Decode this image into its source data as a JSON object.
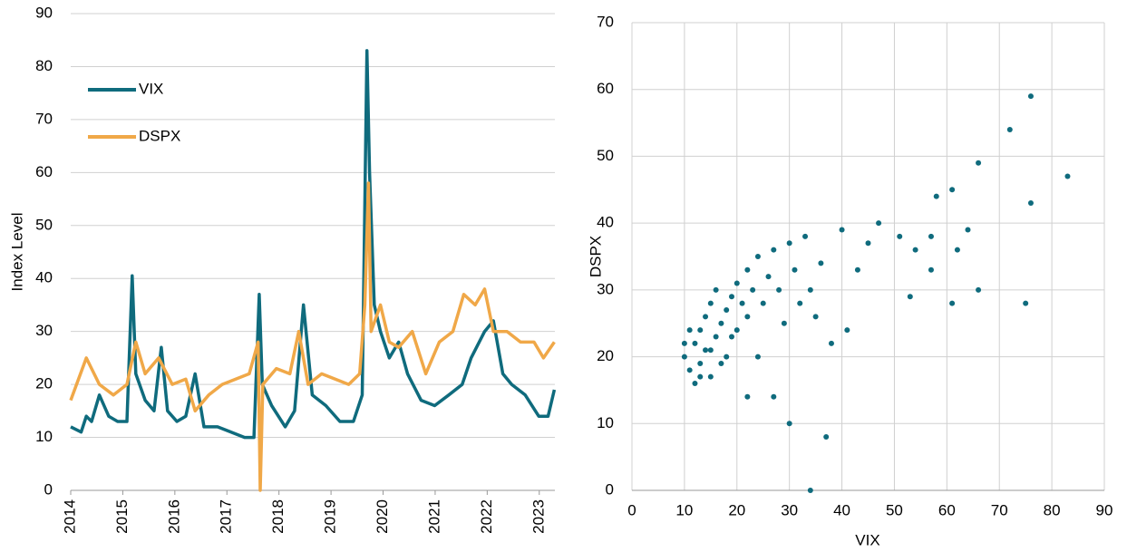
{
  "chart_data": [
    {
      "type": "line",
      "ylabel": "Index Level",
      "xlim": [
        2014,
        2023.3
      ],
      "xticks": [
        2014,
        2015,
        2016,
        2017,
        2018,
        2019,
        2020,
        2021,
        2022,
        2023
      ],
      "ylim": [
        0,
        90
      ],
      "yticks": [
        0,
        10,
        20,
        30,
        40,
        50,
        60,
        70,
        80,
        90
      ],
      "grid": true,
      "legend": "upper left",
      "series": [
        {
          "name": "VIX",
          "color": "#0f6b7d",
          "x": [
            2014.0,
            2014.2,
            2014.3,
            2014.4,
            2014.55,
            2014.73,
            2014.9,
            2015.08,
            2015.18,
            2015.25,
            2015.43,
            2015.6,
            2015.74,
            2015.86,
            2016.04,
            2016.21,
            2016.39,
            2016.56,
            2016.82,
            2017.08,
            2017.34,
            2017.52,
            2017.62,
            2017.68,
            2017.86,
            2018.12,
            2018.3,
            2018.47,
            2018.64,
            2018.9,
            2019.17,
            2019.43,
            2019.6,
            2019.69,
            2019.74,
            2019.83,
            2019.95,
            2020.12,
            2020.3,
            2020.47,
            2020.73,
            2020.99,
            2021.26,
            2021.52,
            2021.69,
            2021.95,
            2022.12,
            2022.3,
            2022.47,
            2022.73,
            2022.99,
            2023.17,
            2023.29
          ],
          "values": [
            12,
            11,
            14,
            13,
            18,
            14,
            13,
            13,
            40.5,
            22,
            17,
            15,
            27,
            15,
            13,
            14,
            22,
            12,
            12,
            11,
            10,
            10,
            37,
            20,
            16,
            12,
            15,
            35,
            18,
            16,
            13,
            13,
            18,
            83,
            60,
            35,
            30,
            25,
            28,
            22,
            17,
            16,
            18,
            20,
            25,
            30,
            32,
            22,
            20,
            18,
            14,
            14,
            19
          ]
        },
        {
          "name": "DSPX",
          "color": "#f0a848",
          "x": [
            2014.0,
            2014.3,
            2014.55,
            2014.82,
            2015.08,
            2015.25,
            2015.43,
            2015.69,
            2015.95,
            2016.21,
            2016.39,
            2016.65,
            2016.91,
            2017.17,
            2017.43,
            2017.6,
            2017.64,
            2017.69,
            2017.95,
            2018.21,
            2018.38,
            2018.56,
            2018.82,
            2019.08,
            2019.34,
            2019.55,
            2019.65,
            2019.72,
            2019.77,
            2019.95,
            2020.12,
            2020.3,
            2020.56,
            2020.82,
            2021.08,
            2021.34,
            2021.55,
            2021.77,
            2021.95,
            2022.12,
            2022.38,
            2022.64,
            2022.9,
            2023.08,
            2023.29
          ],
          "values": [
            17,
            25,
            20,
            18,
            20,
            28,
            22,
            25,
            20,
            21,
            15,
            18,
            20,
            21,
            22,
            28,
            0,
            20,
            23,
            22,
            30,
            20,
            22,
            21,
            20,
            22,
            35,
            58,
            30,
            35,
            28,
            27,
            30,
            22,
            28,
            30,
            37,
            35,
            38,
            30,
            30,
            28,
            28,
            25,
            28
          ]
        }
      ]
    },
    {
      "type": "scatter",
      "xlabel": "VIX",
      "ylabel": "DSPX",
      "color": "#0f6b7d",
      "grid": true,
      "xlim": [
        0,
        90
      ],
      "xticks": [
        0,
        10,
        20,
        30,
        40,
        50,
        60,
        70,
        80,
        90
      ],
      "ylim": [
        0,
        70
      ],
      "yticks": [
        0,
        10,
        20,
        30,
        40,
        50,
        60,
        70
      ],
      "x": [
        10,
        11,
        12,
        12,
        13,
        13,
        14,
        14,
        15,
        15,
        16,
        16,
        17,
        18,
        18,
        19,
        20,
        20,
        21,
        22,
        22,
        23,
        24,
        25,
        26,
        27,
        28,
        29,
        30,
        31,
        32,
        33,
        34,
        35,
        36,
        38,
        40,
        41,
        43,
        45,
        47,
        51,
        53,
        54,
        57,
        57,
        58,
        61,
        61,
        62,
        64,
        66,
        66,
        72,
        75,
        76,
        76,
        83,
        30,
        37,
        34,
        27,
        22,
        10,
        11,
        13,
        15,
        17,
        19,
        24
      ],
      "values": [
        20,
        18,
        22,
        16,
        24,
        19,
        26,
        21,
        17,
        28,
        23,
        30,
        25,
        27,
        20,
        29,
        24,
        31,
        28,
        26,
        33,
        30,
        35,
        28,
        32,
        36,
        30,
        25,
        37,
        33,
        28,
        38,
        30,
        26,
        34,
        22,
        39,
        24,
        33,
        37,
        40,
        38,
        29,
        36,
        38,
        33,
        44,
        28,
        45,
        36,
        39,
        30,
        49,
        54,
        28,
        43,
        59,
        47,
        10,
        8,
        0,
        14,
        14,
        22,
        24,
        17,
        21,
        19,
        23,
        20
      ]
    }
  ]
}
